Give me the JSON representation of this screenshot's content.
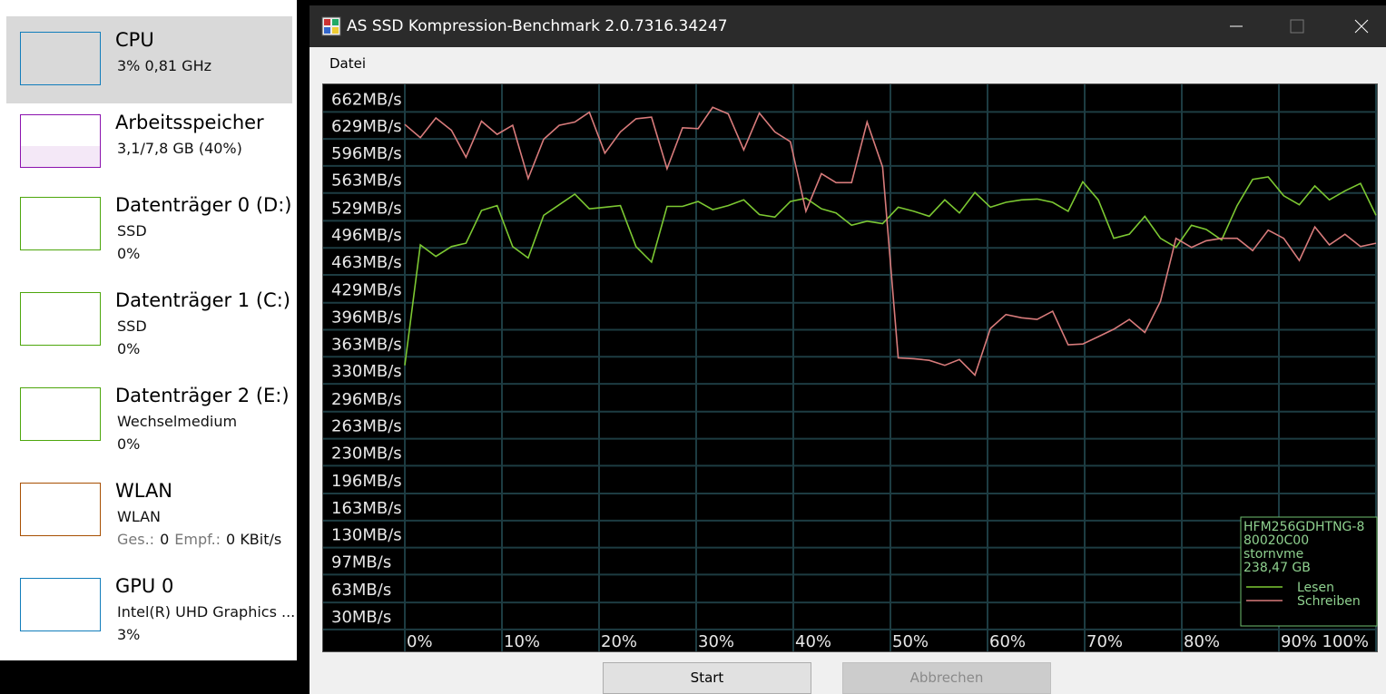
{
  "sidebar": {
    "items": [
      {
        "title": "CPU",
        "lines": [
          "3%  0,81 GHz"
        ]
      },
      {
        "title": "Arbeitsspeicher",
        "lines": [
          "3,1/7,8 GB (40%)"
        ]
      },
      {
        "title": "Datenträger 0 (D:)",
        "lines": [
          "SSD",
          "0%"
        ]
      },
      {
        "title": "Datenträger 1 (C:)",
        "lines": [
          "SSD",
          "0%"
        ]
      },
      {
        "title": "Datenträger 2 (E:)",
        "lines": [
          "Wechselmedium",
          "0%"
        ]
      },
      {
        "title": "WLAN",
        "lines": [
          "WLAN",
          [
            "Ges.:",
            "0",
            "Empf.:",
            "0 KBit/s"
          ]
        ]
      },
      {
        "title": "GPU 0",
        "lines": [
          "Intel(R) UHD Graphics ...",
          "3%"
        ]
      }
    ]
  },
  "window": {
    "title": "AS SSD Kompression-Benchmark 2.0.7316.34247",
    "menu": [
      "Datei"
    ],
    "buttons": [
      "Start",
      "Abbrechen"
    ],
    "info": [
      "HFM256GDHTNG-8",
      "80020C00",
      "stornvme",
      "238,47 GB"
    ]
  },
  "chart_data": {
    "type": "line",
    "x": [
      0,
      1.6,
      3.2,
      4.8,
      6.3,
      7.9,
      9.5,
      11.1,
      12.7,
      14.3,
      15.9,
      17.5,
      19.0,
      20.6,
      22.2,
      23.8,
      25.4,
      27.0,
      28.6,
      30.2,
      31.7,
      33.3,
      34.9,
      36.5,
      38.1,
      39.7,
      41.3,
      42.9,
      44.4,
      46.0,
      47.6,
      49.2,
      50.8,
      52.4,
      54.0,
      55.6,
      57.1,
      58.7,
      60.3,
      61.9,
      63.5,
      65.1,
      66.7,
      68.3,
      69.8,
      71.4,
      73.0,
      74.6,
      76.2,
      77.8,
      79.4,
      81.0,
      82.5,
      84.1,
      85.7,
      87.3,
      88.9,
      90.5,
      92.1,
      93.7,
      95.2,
      96.8,
      98.4,
      100
    ],
    "series": [
      {
        "name": "Lesen",
        "color": "#7cc832",
        "values": [
          336,
          483,
          469,
          481,
          485,
          525,
          531,
          481,
          467,
          519,
          532,
          545,
          527,
          529,
          531,
          481,
          462,
          530,
          530,
          536,
          526,
          531,
          538,
          520,
          517,
          536,
          540,
          527,
          522,
          507,
          512,
          509,
          529,
          524,
          518,
          538,
          522,
          547,
          529,
          535,
          538,
          539,
          535,
          524,
          560,
          538,
          491,
          496,
          518,
          491,
          480,
          507,
          502,
          489,
          531,
          563,
          566,
          543,
          532,
          555,
          538,
          549,
          558,
          519
        ]
      },
      {
        "name": "Schreiben",
        "color": "#d87b7b",
        "values": [
          630,
          614,
          638,
          623,
          590,
          634,
          618,
          629,
          564,
          612,
          629,
          633,
          645,
          595,
          621,
          637,
          639,
          576,
          626,
          625,
          651,
          643,
          599,
          644,
          621,
          609,
          524,
          570,
          559,
          559,
          633,
          578,
          345,
          344,
          342,
          336,
          343,
          324,
          381,
          398,
          394,
          392,
          402,
          361,
          362,
          371,
          380,
          392,
          376,
          414,
          491,
          480,
          488,
          491,
          491,
          476,
          501,
          491,
          464,
          505,
          483,
          496,
          481,
          485
        ]
      }
    ],
    "xlim": [
      0,
      100
    ],
    "xticks": [
      {
        "value": 0,
        "label": "0%"
      },
      {
        "value": 10,
        "label": "10%"
      },
      {
        "value": 20,
        "label": "20%"
      },
      {
        "value": 30,
        "label": "30%"
      },
      {
        "value": 40,
        "label": "40%"
      },
      {
        "value": 50,
        "label": "50%"
      },
      {
        "value": 60,
        "label": "60%"
      },
      {
        "value": 70,
        "label": "70%"
      },
      {
        "value": 80,
        "label": "80%"
      },
      {
        "value": 90,
        "label": "90%"
      },
      {
        "value": 100,
        "label": "100%"
      }
    ],
    "ylim": [
      0,
      679
    ],
    "yticks": [
      {
        "value": 662,
        "label": "662MB/s"
      },
      {
        "value": 629,
        "label": "629MB/s"
      },
      {
        "value": 596,
        "label": "596MB/s"
      },
      {
        "value": 563,
        "label": "563MB/s"
      },
      {
        "value": 529,
        "label": "529MB/s"
      },
      {
        "value": 496,
        "label": "496MB/s"
      },
      {
        "value": 463,
        "label": "463MB/s"
      },
      {
        "value": 429,
        "label": "429MB/s"
      },
      {
        "value": 396,
        "label": "396MB/s"
      },
      {
        "value": 363,
        "label": "363MB/s"
      },
      {
        "value": 330,
        "label": "330MB/s"
      },
      {
        "value": 296,
        "label": "296MB/s"
      },
      {
        "value": 263,
        "label": "263MB/s"
      },
      {
        "value": 230,
        "label": "230MB/s"
      },
      {
        "value": 196,
        "label": "196MB/s"
      },
      {
        "value": 163,
        "label": "163MB/s"
      },
      {
        "value": 130,
        "label": "130MB/s"
      },
      {
        "value": 97,
        "label": "97MB/s"
      },
      {
        "value": 63,
        "label": "63MB/s"
      },
      {
        "value": 30,
        "label": "30MB/s"
      }
    ],
    "grid": true
  }
}
